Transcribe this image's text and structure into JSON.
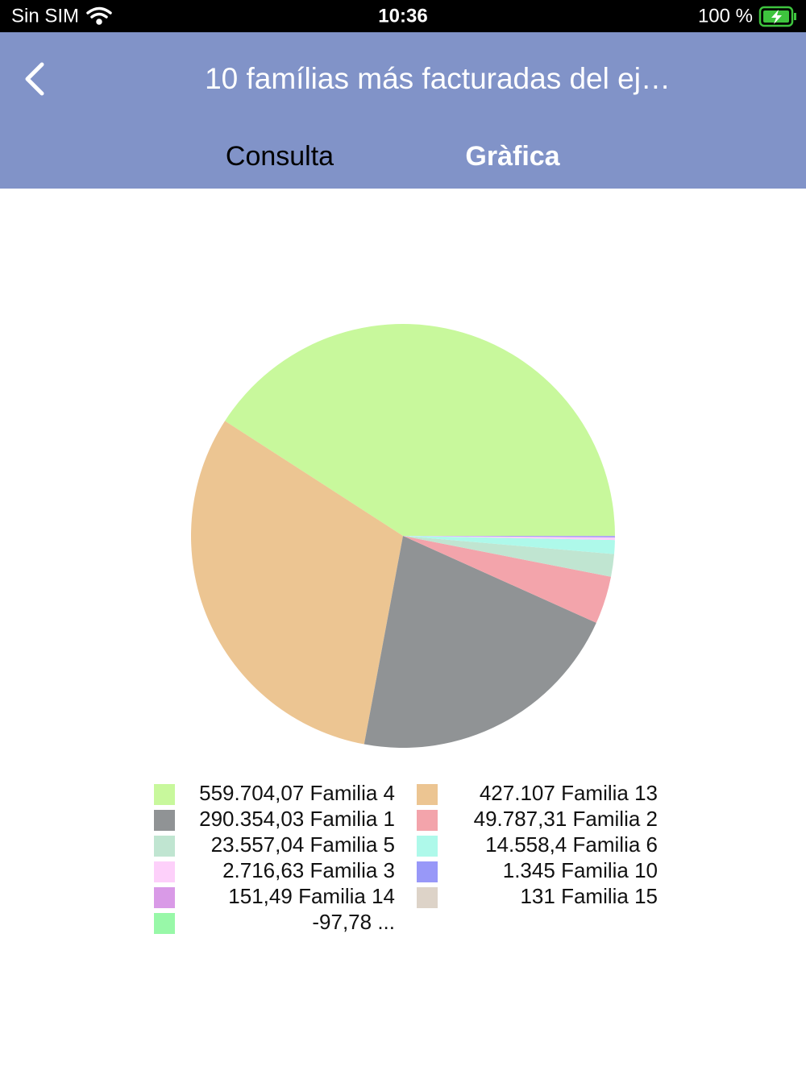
{
  "status_bar": {
    "carrier": "Sin SIM",
    "time": "10:36",
    "battery": "100 %"
  },
  "nav": {
    "title": "10 famílias más facturadas del ej…",
    "tabs": [
      "Consulta",
      "Gràfica"
    ],
    "active_tab": 1
  },
  "chart_data": {
    "type": "pie",
    "categories": [
      "Familia 4",
      "Familia 13",
      "Familia 1",
      "Familia 2",
      "Familia 5",
      "Familia 6",
      "Familia 3",
      "Familia 10",
      "Familia 14",
      "Familia 15",
      "..."
    ],
    "values": [
      559704.07,
      427107,
      290354.03,
      49787.31,
      23557.04,
      14558.4,
      2716.63,
      1345,
      151.49,
      131,
      -97.78
    ],
    "value_labels": [
      "559.704,07",
      "427.107",
      "290.354,03",
      "49.787,31",
      "23.557,04",
      "14.558,4",
      "2.716,63",
      "1.345",
      "151,49",
      "131",
      "-97,78"
    ],
    "colors": [
      "#c8f89c",
      "#ecc592",
      "#909395",
      "#f3a4ab",
      "#c0e5d1",
      "#aef9ea",
      "#fdd0fa",
      "#9898f8",
      "#d99ae7",
      "#ddd3c8",
      "#98f8a8"
    ]
  }
}
